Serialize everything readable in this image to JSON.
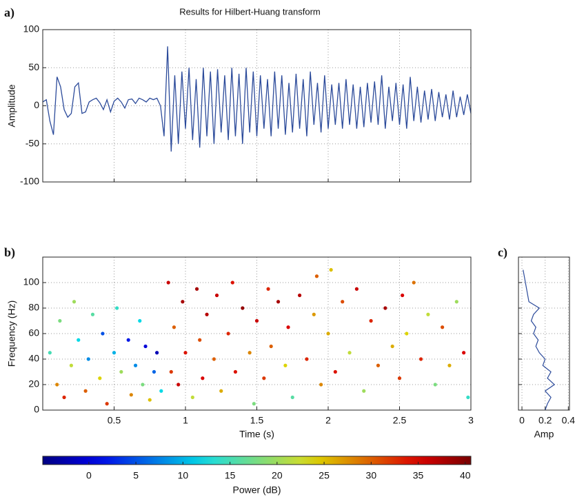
{
  "chart_data": [
    {
      "type": "line",
      "panel_label": "a)",
      "title": "Results for Hilbert-Huang transform",
      "ylabel": "Amplitude",
      "color": "#2b4a9a",
      "grid": true,
      "show_xtick_labels": false,
      "show_ytick_labels": true,
      "xlim": [
        0,
        3
      ],
      "ylim": [
        -100,
        100
      ],
      "xticks": [
        0.5,
        1,
        1.5,
        2,
        2.5,
        3
      ],
      "yticks": [
        -100,
        -50,
        0,
        50,
        100
      ],
      "x": [
        0,
        0.025,
        0.05,
        0.075,
        0.1,
        0.125,
        0.15,
        0.175,
        0.2,
        0.225,
        0.25,
        0.275,
        0.3,
        0.325,
        0.35,
        0.375,
        0.4,
        0.425,
        0.45,
        0.475,
        0.5,
        0.525,
        0.55,
        0.575,
        0.6,
        0.625,
        0.65,
        0.675,
        0.7,
        0.725,
        0.75,
        0.775,
        0.8,
        0.825,
        0.85,
        0.875,
        0.9,
        0.925,
        0.95,
        0.975,
        1,
        1.025,
        1.05,
        1.075,
        1.1,
        1.125,
        1.15,
        1.175,
        1.2,
        1.225,
        1.25,
        1.275,
        1.3,
        1.325,
        1.35,
        1.375,
        1.4,
        1.425,
        1.45,
        1.475,
        1.5,
        1.525,
        1.55,
        1.575,
        1.6,
        1.625,
        1.65,
        1.675,
        1.7,
        1.725,
        1.75,
        1.775,
        1.8,
        1.825,
        1.85,
        1.875,
        1.9,
        1.925,
        1.95,
        1.975,
        2,
        2.025,
        2.05,
        2.075,
        2.1,
        2.125,
        2.15,
        2.175,
        2.2,
        2.225,
        2.25,
        2.275,
        2.3,
        2.325,
        2.35,
        2.375,
        2.4,
        2.425,
        2.45,
        2.475,
        2.5,
        2.525,
        2.55,
        2.575,
        2.6,
        2.625,
        2.65,
        2.675,
        2.7,
        2.725,
        2.75,
        2.775,
        2.8,
        2.825,
        2.85,
        2.875,
        2.9,
        2.925,
        2.95,
        2.975,
        3
      ],
      "values": [
        5,
        8,
        -20,
        -38,
        38,
        25,
        -5,
        -15,
        -10,
        25,
        30,
        -10,
        -8,
        5,
        8,
        10,
        4,
        -5,
        8,
        -8,
        6,
        10,
        5,
        -3,
        8,
        9,
        3,
        10,
        8,
        5,
        10,
        8,
        10,
        0,
        -40,
        78,
        -60,
        40,
        -50,
        45,
        -30,
        50,
        -45,
        35,
        -55,
        50,
        -40,
        45,
        -50,
        48,
        -35,
        40,
        -45,
        50,
        -40,
        42,
        -50,
        50,
        -35,
        45,
        -40,
        40,
        -30,
        35,
        -40,
        45,
        -30,
        40,
        -38,
        30,
        -35,
        42,
        -30,
        35,
        -40,
        45,
        -25,
        30,
        -35,
        40,
        -30,
        28,
        -25,
        30,
        -30,
        35,
        -25,
        28,
        -30,
        25,
        -28,
        30,
        -22,
        32,
        -25,
        40,
        -30,
        25,
        -20,
        30,
        -25,
        28,
        -30,
        38,
        -20,
        25,
        -22,
        20,
        -18,
        22,
        -20,
        18,
        -15,
        15,
        -18,
        20,
        -15,
        12,
        -12,
        15,
        -10
      ]
    },
    {
      "type": "scatter",
      "panel_label": "b)",
      "xlabel": "Time (s)",
      "ylabel": "Frequency (Hz)",
      "colormap": "jet",
      "clim": [
        -4.9,
        40.6
      ],
      "grid": true,
      "show_xtick_labels": true,
      "show_ytick_labels": true,
      "xlim": [
        0,
        3
      ],
      "ylim": [
        0,
        120
      ],
      "xticks": [
        0.5,
        1,
        1.5,
        2,
        2.5,
        3
      ],
      "yticks": [
        0,
        20,
        40,
        60,
        80,
        100
      ],
      "x": [
        0.05,
        0.1,
        0.12,
        0.15,
        0.2,
        0.22,
        0.25,
        0.3,
        0.32,
        0.35,
        0.4,
        0.42,
        0.45,
        0.5,
        0.52,
        0.55,
        0.6,
        0.62,
        0.65,
        0.68,
        0.7,
        0.72,
        0.75,
        0.78,
        0.8,
        0.83,
        0.88,
        0.9,
        0.92,
        0.95,
        0.98,
        1,
        1.05,
        1.08,
        1.1,
        1.12,
        1.15,
        1.2,
        1.22,
        1.25,
        1.3,
        1.33,
        1.35,
        1.4,
        1.45,
        1.48,
        1.5,
        1.55,
        1.58,
        1.6,
        1.65,
        1.7,
        1.72,
        1.75,
        1.8,
        1.85,
        1.9,
        1.92,
        1.95,
        2,
        2.02,
        2.05,
        2.1,
        2.15,
        2.2,
        2.25,
        2.3,
        2.35,
        2.4,
        2.45,
        2.5,
        2.52,
        2.55,
        2.6,
        2.65,
        2.7,
        2.75,
        2.8,
        2.85,
        2.9,
        2.95,
        2.98
      ],
      "values": [
        45,
        20,
        70,
        10,
        35,
        85,
        55,
        15,
        40,
        75,
        25,
        60,
        5,
        45,
        80,
        30,
        55,
        12,
        35,
        70,
        20,
        50,
        8,
        30,
        45,
        15,
        100,
        30,
        65,
        20,
        85,
        45,
        10,
        95,
        55,
        25,
        75,
        40,
        90,
        15,
        60,
        100,
        30,
        80,
        45,
        5,
        70,
        25,
        95,
        50,
        85,
        35,
        65,
        10,
        90,
        40,
        75,
        105,
        20,
        60,
        110,
        30,
        85,
        45,
        95,
        15,
        70,
        35,
        80,
        50,
        25,
        90,
        60,
        100,
        40,
        75,
        20,
        65,
        35,
        85,
        45,
        10
      ],
      "power": [
        15,
        28,
        18,
        33,
        22,
        20,
        12,
        30,
        8,
        16,
        24,
        5,
        32,
        10,
        14,
        20,
        2,
        28,
        8,
        12,
        18,
        0,
        25,
        6,
        -2,
        12,
        36,
        32,
        30,
        36,
        38,
        34,
        22,
        38,
        31,
        35,
        37,
        30,
        36,
        26,
        33,
        34,
        34,
        39,
        28,
        18,
        36,
        32,
        33,
        30,
        38,
        24,
        35,
        16,
        37,
        33,
        27,
        30,
        28,
        26,
        25,
        34,
        31,
        22,
        36,
        20,
        33,
        30,
        38,
        26,
        32,
        35,
        24,
        29,
        33,
        22,
        18,
        31,
        26,
        20,
        35,
        14
      ]
    },
    {
      "type": "line",
      "orientation": "horizontal",
      "panel_label": "c)",
      "xlabel": "Amp",
      "color": "#2b4a9a",
      "grid": true,
      "show_xtick_labels": true,
      "show_ytick_labels": false,
      "xlim": [
        -0.03,
        0.41
      ],
      "ylim": [
        0,
        120
      ],
      "xticks": [
        0,
        0.2,
        0.4
      ],
      "yticks": [
        20,
        40,
        60,
        80,
        100
      ],
      "y": [
        0,
        5,
        10,
        15,
        20,
        25,
        30,
        35,
        40,
        45,
        50,
        55,
        60,
        65,
        70,
        75,
        80,
        85,
        90,
        95,
        100,
        105,
        110
      ],
      "values": [
        0.2,
        0.22,
        0.25,
        0.2,
        0.28,
        0.22,
        0.25,
        0.18,
        0.2,
        0.15,
        0.12,
        0.14,
        0.1,
        0.12,
        0.08,
        0.1,
        0.15,
        0.06,
        0.05,
        0.04,
        0.03,
        0.02,
        0.01
      ]
    },
    {
      "type": "colorbar",
      "colormap": "jet",
      "label": "Power (dB)",
      "clim": [
        -4.9,
        40.6
      ],
      "ticks": [
        0,
        5,
        10,
        15,
        20,
        25,
        30,
        35,
        40
      ]
    }
  ]
}
